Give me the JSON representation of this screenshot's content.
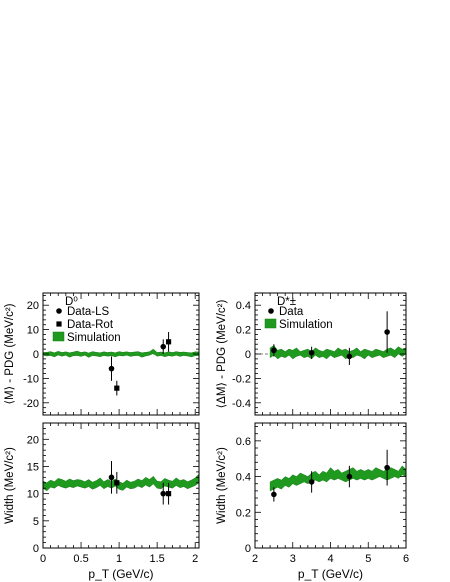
{
  "chart_data": [
    {
      "id": "d0-mass",
      "type": "scatter",
      "title": "",
      "particle_label": "D⁰",
      "xlabel": "",
      "ylabel": "⟨M⟩ - PDG (MeV/c²)",
      "xlim": [
        0,
        2.05
      ],
      "ylim": [
        -25,
        25
      ],
      "xticks": [
        0,
        0.5,
        1,
        1.5,
        2
      ],
      "yticks": [
        -20,
        -10,
        0,
        10,
        20
      ],
      "show_xtick_labels": false,
      "legend": [
        "Data-LS",
        "Data-Rot",
        "Simulation"
      ],
      "legend_position": "top-left",
      "series": [
        {
          "name": "Data-LS",
          "marker": "circle",
          "x": [
            0.9,
            1.58
          ],
          "y": [
            -6,
            3
          ],
          "yerr": [
            5,
            3
          ]
        },
        {
          "name": "Data-Rot",
          "marker": "square",
          "x": [
            0.97,
            1.65
          ],
          "y": [
            -14,
            5
          ],
          "yerr": [
            3,
            4
          ]
        },
        {
          "name": "Simulation",
          "marker": "band",
          "x": [
            0,
            0.05,
            0.1,
            0.15,
            0.2,
            0.25,
            0.3,
            0.35,
            0.4,
            0.45,
            0.5,
            0.55,
            0.6,
            0.65,
            0.7,
            0.75,
            0.8,
            0.85,
            0.9,
            0.95,
            1.0,
            1.05,
            1.1,
            1.15,
            1.2,
            1.25,
            1.3,
            1.35,
            1.4,
            1.45,
            1.5,
            1.55,
            1.6,
            1.65,
            1.7,
            1.75,
            1.8,
            1.85,
            1.9,
            1.95,
            2.0,
            2.05
          ],
          "y_low": [
            -0.5,
            -0.8,
            -0.6,
            -1.2,
            -0.4,
            -0.9,
            -0.5,
            -1.3,
            -0.7,
            -0.6,
            -1.0,
            -0.5,
            -1.4,
            -0.6,
            -0.8,
            -1.1,
            -0.6,
            -0.9,
            -0.7,
            -1.2,
            -0.6,
            -0.8,
            -0.5,
            -1.0,
            -0.7,
            -0.6,
            -1.3,
            -0.8,
            -0.5,
            0.2,
            -0.9,
            -0.6,
            -1.1,
            -0.7,
            -0.9,
            -0.5,
            -1.0,
            -0.6,
            -0.8,
            -1.2,
            -0.7,
            -0.6
          ],
          "y_high": [
            0.6,
            0.7,
            1.0,
            0.5,
            1.1,
            0.6,
            0.9,
            0.5,
            0.8,
            1.2,
            0.6,
            0.9,
            0.4,
            1.0,
            0.7,
            0.5,
            0.9,
            0.6,
            0.8,
            0.5,
            1.0,
            0.7,
            0.9,
            0.6,
            0.8,
            1.0,
            0.5,
            0.7,
            0.9,
            2.0,
            0.6,
            0.8,
            0.5,
            0.9,
            0.6,
            1.0,
            0.7,
            0.8,
            0.6,
            0.5,
            0.9,
            0.8
          ]
        }
      ]
    },
    {
      "id": "dstar-mass",
      "type": "scatter",
      "title": "",
      "particle_label": "D*±",
      "xlabel": "",
      "ylabel": "⟨ΔM⟩ - PDG (MeV/c²)",
      "xlim": [
        2,
        6
      ],
      "ylim": [
        -0.5,
        0.5
      ],
      "xticks": [
        2,
        3,
        4,
        5,
        6
      ],
      "yticks": [
        -0.4,
        -0.2,
        0,
        0.2,
        0.4
      ],
      "show_xtick_labels": false,
      "legend": [
        "Data",
        "Simulation"
      ],
      "legend_position": "top-left",
      "series": [
        {
          "name": "Data",
          "marker": "circle",
          "x": [
            2.5,
            3.5,
            4.5,
            5.5
          ],
          "y": [
            0.03,
            0.01,
            -0.02,
            0.18
          ],
          "yerr": [
            0.05,
            0.05,
            0.07,
            0.17
          ]
        },
        {
          "name": "Simulation",
          "marker": "band",
          "x": [
            2.4,
            2.5,
            2.6,
            2.7,
            2.8,
            2.9,
            3.0,
            3.1,
            3.2,
            3.3,
            3.4,
            3.5,
            3.6,
            3.7,
            3.8,
            3.9,
            4.0,
            4.1,
            4.2,
            4.3,
            4.4,
            4.5,
            4.6,
            4.7,
            4.8,
            4.9,
            5.0,
            5.1,
            5.2,
            5.3,
            5.4,
            5.5,
            5.6,
            5.7,
            5.8,
            5.9,
            6.0
          ],
          "y_low": [
            -0.03,
            -0.01,
            -0.04,
            -0.02,
            -0.03,
            -0.01,
            -0.04,
            -0.02,
            -0.01,
            -0.03,
            -0.02,
            -0.04,
            -0.01,
            -0.03,
            -0.02,
            -0.04,
            -0.01,
            -0.03,
            -0.02,
            -0.01,
            -0.04,
            -0.02,
            -0.03,
            -0.01,
            -0.02,
            -0.04,
            -0.01,
            -0.03,
            -0.02,
            -0.01,
            -0.03,
            -0.02,
            -0.01,
            -0.03,
            0.0,
            -0.02,
            0.0
          ],
          "y_high": [
            0.05,
            0.07,
            0.03,
            0.04,
            0.02,
            0.04,
            0.03,
            0.05,
            0.02,
            0.03,
            0.04,
            0.02,
            0.05,
            0.03,
            0.02,
            0.04,
            0.03,
            0.02,
            0.05,
            0.03,
            0.04,
            0.02,
            0.03,
            0.05,
            0.02,
            0.04,
            0.03,
            0.02,
            0.04,
            0.03,
            0.02,
            0.04,
            0.05,
            0.03,
            0.06,
            0.04,
            0.05
          ]
        }
      ]
    },
    {
      "id": "d0-width",
      "type": "scatter",
      "title": "",
      "xlabel": "p_T (GeV/c)",
      "ylabel": "Width (MeV/c²)",
      "xlim": [
        0,
        2.05
      ],
      "ylim": [
        0,
        23
      ],
      "xticks": [
        0,
        0.5,
        1,
        1.5,
        2
      ],
      "yticks": [
        0,
        5,
        10,
        15,
        20
      ],
      "show_xtick_labels": true,
      "series": [
        {
          "name": "Data-LS",
          "marker": "circle",
          "x": [
            0.9,
            1.58
          ],
          "y": [
            13,
            10
          ],
          "yerr": [
            3,
            2
          ]
        },
        {
          "name": "Data-Rot",
          "marker": "square",
          "x": [
            0.97,
            1.65
          ],
          "y": [
            12,
            10
          ],
          "yerr": [
            2,
            2
          ]
        },
        {
          "name": "Simulation",
          "marker": "band",
          "x": [
            0,
            0.05,
            0.1,
            0.15,
            0.2,
            0.25,
            0.3,
            0.35,
            0.4,
            0.45,
            0.5,
            0.55,
            0.6,
            0.65,
            0.7,
            0.75,
            0.8,
            0.85,
            0.9,
            0.95,
            1.0,
            1.05,
            1.1,
            1.15,
            1.2,
            1.25,
            1.3,
            1.35,
            1.4,
            1.45,
            1.5,
            1.55,
            1.6,
            1.65,
            1.7,
            1.75,
            1.8,
            1.85,
            1.9,
            1.95,
            2.0,
            2.05
          ],
          "y_low": [
            11.0,
            10.5,
            11.2,
            11.0,
            11.5,
            11.2,
            11.0,
            11.3,
            11.1,
            11.4,
            11.2,
            11.0,
            11.3,
            10.8,
            11.1,
            11.5,
            10.9,
            11.3,
            11.0,
            11.4,
            10.8,
            10.6,
            11.2,
            10.9,
            11.0,
            11.4,
            11.1,
            11.6,
            11.2,
            11.8,
            11.0,
            10.9,
            11.4,
            11.2,
            11.0,
            11.5,
            11.1,
            11.3,
            10.9,
            11.2,
            11.5,
            12.0
          ],
          "y_high": [
            12.3,
            12.0,
            12.5,
            12.2,
            12.8,
            12.6,
            12.3,
            12.7,
            12.4,
            12.6,
            12.5,
            12.2,
            12.6,
            12.1,
            12.4,
            12.9,
            12.2,
            12.6,
            12.3,
            12.7,
            12.2,
            11.9,
            12.5,
            12.1,
            12.3,
            12.7,
            12.4,
            13.0,
            12.6,
            13.2,
            12.3,
            12.2,
            12.8,
            12.5,
            12.3,
            12.9,
            12.4,
            12.6,
            12.2,
            12.5,
            12.9,
            13.6
          ]
        }
      ]
    },
    {
      "id": "dstar-width",
      "type": "scatter",
      "title": "",
      "xlabel": "p_T (GeV/c)",
      "ylabel": "Width (MeV/c²)",
      "xlim": [
        2,
        6
      ],
      "ylim": [
        0,
        0.7
      ],
      "xticks": [
        2,
        3,
        4,
        5,
        6
      ],
      "yticks": [
        0,
        0.2,
        0.4,
        0.6
      ],
      "show_xtick_labels": true,
      "series": [
        {
          "name": "Data",
          "marker": "circle",
          "x": [
            2.5,
            3.5,
            4.5,
            5.5
          ],
          "y": [
            0.3,
            0.37,
            0.4,
            0.45
          ],
          "yerr": [
            0.04,
            0.06,
            0.06,
            0.1
          ]
        },
        {
          "name": "Simulation",
          "marker": "band",
          "x": [
            2.4,
            2.5,
            2.6,
            2.7,
            2.8,
            2.9,
            3.0,
            3.1,
            3.2,
            3.3,
            3.4,
            3.5,
            3.6,
            3.7,
            3.8,
            3.9,
            4.0,
            4.1,
            4.2,
            4.3,
            4.4,
            4.5,
            4.6,
            4.7,
            4.8,
            4.9,
            5.0,
            5.1,
            5.2,
            5.3,
            5.4,
            5.5,
            5.6,
            5.7,
            5.8,
            5.9,
            6.0
          ],
          "y_low": [
            0.32,
            0.33,
            0.34,
            0.33,
            0.35,
            0.34,
            0.36,
            0.35,
            0.36,
            0.37,
            0.36,
            0.37,
            0.38,
            0.37,
            0.38,
            0.37,
            0.39,
            0.38,
            0.39,
            0.38,
            0.37,
            0.38,
            0.39,
            0.38,
            0.39,
            0.38,
            0.39,
            0.38,
            0.39,
            0.4,
            0.39,
            0.38,
            0.39,
            0.4,
            0.39,
            0.41,
            0.4
          ],
          "y_high": [
            0.37,
            0.38,
            0.39,
            0.38,
            0.4,
            0.39,
            0.41,
            0.4,
            0.42,
            0.41,
            0.4,
            0.42,
            0.43,
            0.41,
            0.43,
            0.42,
            0.45,
            0.43,
            0.44,
            0.42,
            0.43,
            0.44,
            0.45,
            0.43,
            0.44,
            0.43,
            0.44,
            0.43,
            0.45,
            0.44,
            0.43,
            0.44,
            0.45,
            0.44,
            0.43,
            0.46,
            0.44
          ]
        }
      ]
    }
  ],
  "colors": {
    "simulation_band": "#1f9a1f",
    "simulation_band_edge": "#167a16",
    "data_marker": "#000000",
    "frame": "#000000"
  }
}
